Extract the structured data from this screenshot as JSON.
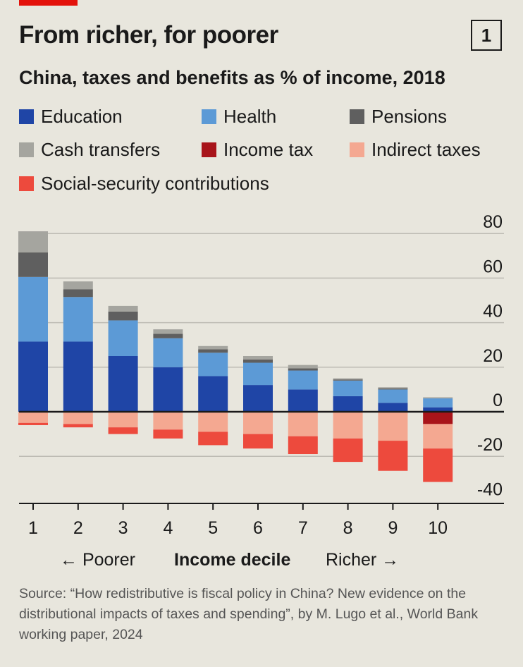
{
  "header": {
    "title": "From richer, for poorer",
    "chart_number": "1",
    "subtitle": "China, taxes and benefits as % of income, 2018"
  },
  "legend": [
    {
      "label": "Education",
      "color": "#1f45a6"
    },
    {
      "label": "Health",
      "color": "#5c9ad6"
    },
    {
      "label": "Pensions",
      "color": "#5f5f5f"
    },
    {
      "label": "Cash transfers",
      "color": "#a5a59f"
    },
    {
      "label": "Income tax",
      "color": "#a8141a"
    },
    {
      "label": "Indirect taxes",
      "color": "#f4a891"
    },
    {
      "label": "Social-security contributions",
      "color": "#ed4a3d"
    }
  ],
  "axis": {
    "x_left": "← Poorer",
    "x_center": "Income decile",
    "x_right": "Richer →"
  },
  "source": "Source: “How redistributive is fiscal policy in China? New evidence on the distributional impacts of taxes and spending”, by M. Lugo et al., World Bank working paper, 2024",
  "chart_data": {
    "type": "bar",
    "stacked": true,
    "categories": [
      "1",
      "2",
      "3",
      "4",
      "5",
      "6",
      "7",
      "8",
      "9",
      "10"
    ],
    "xlabel": "Income decile",
    "ylabel": "",
    "ylim": [
      -40,
      80
    ],
    "yticks": [
      80,
      60,
      40,
      20,
      0,
      -20,
      -40
    ],
    "grid": true,
    "series": [
      {
        "name": "Education",
        "values": [
          31.5,
          31.5,
          25,
          20,
          16,
          12,
          10,
          7,
          4,
          2
        ]
      },
      {
        "name": "Health",
        "values": [
          29,
          20,
          16,
          13,
          10.5,
          10,
          8.5,
          7,
          6,
          4
        ]
      },
      {
        "name": "Pensions",
        "values": [
          11,
          3.5,
          4,
          2,
          1.5,
          1.5,
          1,
          0.5,
          0.5,
          0
        ]
      },
      {
        "name": "Cash transfers",
        "values": [
          9.5,
          3.5,
          2.5,
          2,
          1.5,
          1.5,
          1.5,
          0.5,
          0.5,
          0.5
        ]
      },
      {
        "name": "Income tax",
        "values": [
          0,
          0,
          0,
          0,
          0,
          0,
          0,
          0,
          0,
          -5.5
        ]
      },
      {
        "name": "Indirect taxes",
        "values": [
          -5,
          -5.5,
          -7,
          -8,
          -9,
          -10,
          -11,
          -12,
          -13,
          -11
        ]
      },
      {
        "name": "Social-security contributions",
        "values": [
          -1,
          -1.5,
          -3,
          -4,
          -6,
          -6.5,
          -8,
          -10.5,
          -13.5,
          -15
        ]
      }
    ]
  }
}
